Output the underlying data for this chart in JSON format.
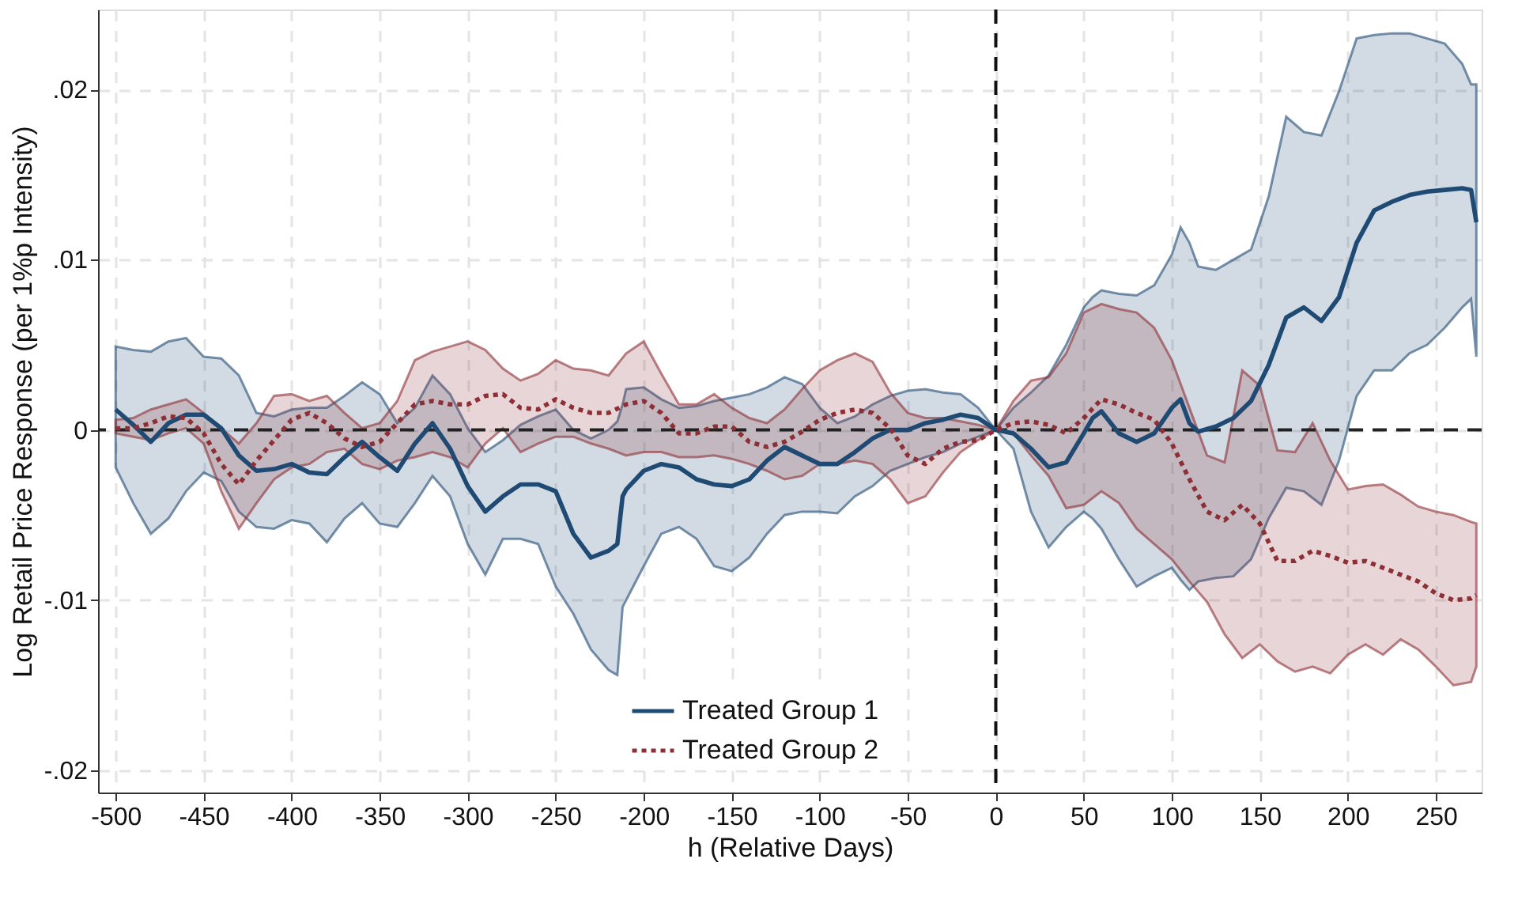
{
  "chart_data": {
    "type": "line",
    "xlabel": "h (Relative Days)",
    "ylabel": "Log Retail Price Response (per 1%p Intensity)",
    "xlim": [
      -510,
      276
    ],
    "xticks": [
      -500,
      -450,
      -400,
      -350,
      -300,
      -250,
      -200,
      -150,
      -100,
      -50,
      0,
      50,
      100,
      150,
      200,
      250
    ],
    "ylim": [
      -0.0213,
      0.0247
    ],
    "yticks": [
      {
        "value": -0.02,
        "label": "-.02"
      },
      {
        "value": -0.01,
        "label": "-.01"
      },
      0,
      {
        "value": 0.01,
        "label": ".01"
      },
      {
        "value": 0.02,
        "label": ".02"
      }
    ],
    "grid": true,
    "legend": "bottom",
    "ref_lines": [
      {
        "axis": "y",
        "value": 0,
        "color": "#222222",
        "line_style": "dashed"
      },
      {
        "axis": "x",
        "value": 0,
        "color": "#111111",
        "line_style": "dashed"
      }
    ],
    "series": [
      {
        "name": "Treated Group 1",
        "color": "#1f4a73",
        "line_style": "solid",
        "x": [
          -500,
          -490,
          -480,
          -470,
          -460,
          -450,
          -440,
          -430,
          -420,
          -410,
          -400,
          -390,
          -380,
          -370,
          -360,
          -350,
          -340,
          -330,
          -320,
          -310,
          -300,
          -290,
          -280,
          -270,
          -260,
          -250,
          -240,
          -230,
          -220,
          -215,
          -212,
          -210,
          -200,
          -190,
          -180,
          -170,
          -160,
          -150,
          -140,
          -130,
          -120,
          -110,
          -100,
          -90,
          -80,
          -70,
          -60,
          -50,
          -40,
          -30,
          -20,
          -10,
          0,
          10,
          20,
          30,
          40,
          50,
          55,
          60,
          70,
          80,
          90,
          100,
          105,
          110,
          115,
          125,
          135,
          145,
          155,
          165,
          175,
          185,
          195,
          205,
          215,
          225,
          235,
          245,
          255,
          265,
          270,
          273
        ],
        "values": [
          0.0012,
          0.0003,
          -0.0007,
          0.0004,
          0.0009,
          0.0009,
          0.0001,
          -0.0015,
          -0.0024,
          -0.0023,
          -0.002,
          -0.0025,
          -0.0026,
          -0.0016,
          -0.0007,
          -0.0016,
          -0.0024,
          -0.0008,
          0.0004,
          -0.0011,
          -0.0033,
          -0.0048,
          -0.0039,
          -0.0032,
          -0.0032,
          -0.0036,
          -0.0061,
          -0.0075,
          -0.0071,
          -0.0067,
          -0.0039,
          -0.0035,
          -0.0024,
          -0.002,
          -0.0022,
          -0.0029,
          -0.0032,
          -0.0033,
          -0.0029,
          -0.0018,
          -0.001,
          -0.0015,
          -0.002,
          -0.002,
          -0.0013,
          -0.0005,
          0,
          0,
          0.0004,
          0.0006,
          0.0009,
          0.0007,
          0,
          -0.0002,
          -0.0011,
          -0.0022,
          -0.0019,
          -0.0002,
          0.0007,
          0.0011,
          -0.0002,
          -0.0007,
          -0.0002,
          0.0013,
          0.0018,
          0.0004,
          -0.0001,
          0.0002,
          0.0007,
          0.0017,
          0.0038,
          0.0066,
          0.0072,
          0.0064,
          0.0078,
          0.011,
          0.0129,
          0.0134,
          0.0138,
          0.014,
          0.0141,
          0.0142,
          0.0141,
          0.0122
        ],
        "upper": [
          0.0049,
          0.0047,
          0.0046,
          0.0052,
          0.0054,
          0.0043,
          0.0042,
          0.0032,
          0.001,
          0.0008,
          0.0012,
          0.0013,
          0.0013,
          0.002,
          0.0028,
          0.0021,
          0.0004,
          0.0013,
          0.0032,
          0.0021,
          0.0001,
          -0.0013,
          -0.0006,
          0.0003,
          0.0008,
          0.0012,
          0,
          -0.0005,
          0,
          0.0005,
          0.0015,
          0.0024,
          0.0025,
          0.0018,
          0.0013,
          0.0014,
          0.0017,
          0.0019,
          0.0021,
          0.0025,
          0.0031,
          0.0027,
          0.0013,
          0.0004,
          0.0008,
          0.0015,
          0.002,
          0.0023,
          0.0024,
          0.0022,
          0.0021,
          0.0013,
          0,
          0.0013,
          0.0022,
          0.0032,
          0.005,
          0.0072,
          0.0078,
          0.0082,
          0.008,
          0.0079,
          0.0085,
          0.0103,
          0.0119,
          0.011,
          0.0096,
          0.0094,
          0.01,
          0.0106,
          0.0137,
          0.0184,
          0.0175,
          0.0173,
          0.0199,
          0.023,
          0.0232,
          0.0233,
          0.0233,
          0.023,
          0.0227,
          0.0215,
          0.0203,
          0.0203
        ],
        "lower": [
          -0.0022,
          -0.0043,
          -0.0061,
          -0.0052,
          -0.0036,
          -0.0025,
          -0.003,
          -0.0048,
          -0.0057,
          -0.0058,
          -0.0053,
          -0.0055,
          -0.0066,
          -0.0052,
          -0.0043,
          -0.0055,
          -0.0057,
          -0.0043,
          -0.0027,
          -0.0039,
          -0.0067,
          -0.0085,
          -0.0064,
          -0.0064,
          -0.0067,
          -0.0092,
          -0.0108,
          -0.0129,
          -0.0141,
          -0.0144,
          -0.0104,
          -0.01,
          -0.008,
          -0.0061,
          -0.0057,
          -0.0064,
          -0.008,
          -0.0083,
          -0.0075,
          -0.0061,
          -0.005,
          -0.0048,
          -0.0048,
          -0.0049,
          -0.0039,
          -0.0033,
          -0.0024,
          -0.002,
          -0.0016,
          -0.0013,
          -0.0008,
          -0.0004,
          0,
          -0.0011,
          -0.0048,
          -0.0069,
          -0.0057,
          -0.0048,
          -0.0052,
          -0.0058,
          -0.0076,
          -0.0092,
          -0.0086,
          -0.0081,
          -0.0088,
          -0.0094,
          -0.0089,
          -0.0087,
          -0.0086,
          -0.0076,
          -0.0052,
          -0.0034,
          -0.0036,
          -0.0044,
          -0.0018,
          0.002,
          0.0035,
          0.0035,
          0.0045,
          0.005,
          0.006,
          0.0072,
          0.0077,
          0.0043
        ]
      },
      {
        "name": "Treated Group 2",
        "color": "#8e2f36",
        "line_style": "dotted",
        "x": [
          -500,
          -490,
          -480,
          -470,
          -460,
          -450,
          -440,
          -430,
          -420,
          -410,
          -400,
          -390,
          -380,
          -370,
          -360,
          -350,
          -340,
          -330,
          -320,
          -310,
          -300,
          -290,
          -280,
          -270,
          -260,
          -250,
          -240,
          -230,
          -220,
          -210,
          -200,
          -190,
          -180,
          -170,
          -160,
          -150,
          -140,
          -130,
          -120,
          -110,
          -100,
          -90,
          -80,
          -70,
          -60,
          -50,
          -40,
          -30,
          -20,
          -10,
          0,
          10,
          20,
          30,
          40,
          50,
          60,
          70,
          80,
          90,
          100,
          110,
          120,
          130,
          140,
          150,
          160,
          170,
          180,
          190,
          200,
          210,
          220,
          230,
          240,
          250,
          260,
          270,
          273
        ],
        "values": [
          0.0001,
          0.0001,
          0.0004,
          0.0008,
          0.0007,
          -0.0002,
          -0.002,
          -0.0032,
          -0.0018,
          -0.0006,
          0.0006,
          0.001,
          0.0004,
          -0.0005,
          -0.001,
          -0.0007,
          0.0004,
          0.0015,
          0.0017,
          0.0015,
          0.0015,
          0.002,
          0.0021,
          0.0013,
          0.0012,
          0.0018,
          0.0013,
          0.001,
          0.001,
          0.0015,
          0.0017,
          0.001,
          -0.0002,
          -0.0002,
          0.0002,
          0.0002,
          -0.0007,
          -0.001,
          -0.0007,
          -0.0001,
          0.0006,
          0.001,
          0.0012,
          0.001,
          0.0001,
          -0.0015,
          -0.002,
          -0.0011,
          -0.0007,
          -0.0006,
          0,
          0.0004,
          0.0005,
          0.0003,
          -0.0002,
          0.0007,
          0.0018,
          0.0015,
          0.001,
          0.0006,
          -0.0008,
          -0.0029,
          -0.0048,
          -0.0053,
          -0.0044,
          -0.0055,
          -0.0077,
          -0.0077,
          -0.0071,
          -0.0074,
          -0.0078,
          -0.0077,
          -0.0081,
          -0.0085,
          -0.0089,
          -0.0096,
          -0.01,
          -0.0099,
          -0.0097
        ],
        "upper": [
          0.0006,
          0.0007,
          0.0012,
          0.0015,
          0.0018,
          0.001,
          0.0001,
          -0.0008,
          0.0004,
          0.002,
          0.0021,
          0.0017,
          0.002,
          0.001,
          0.0001,
          0.0004,
          0.0017,
          0.0041,
          0.0046,
          0.0049,
          0.0052,
          0.0047,
          0.0036,
          0.0029,
          0.0033,
          0.0041,
          0.0036,
          0.0035,
          0.0032,
          0.0045,
          0.0052,
          0.0033,
          0.0015,
          0.0015,
          0.0021,
          0.0013,
          0.0007,
          0.0004,
          0.0012,
          0.0024,
          0.0035,
          0.0041,
          0.0045,
          0.004,
          0.0022,
          0.001,
          0.0007,
          0.0007,
          0.0005,
          0.0003,
          0,
          0.0017,
          0.0029,
          0.0031,
          0.0045,
          0.0069,
          0.0074,
          0.0071,
          0.0069,
          0.006,
          0.0041,
          0.0013,
          -0.0015,
          -0.0019,
          0.0035,
          0.0026,
          -0.0012,
          -0.0013,
          0.0004,
          -0.0018,
          -0.0035,
          -0.0033,
          -0.0032,
          -0.0038,
          -0.0045,
          -0.0048,
          -0.005,
          -0.0054,
          -0.0055
        ],
        "lower": [
          -0.0002,
          -0.0004,
          -0.0006,
          -0.0002,
          0.0001,
          -0.0008,
          -0.0036,
          -0.0058,
          -0.0043,
          -0.0029,
          -0.0022,
          -0.002,
          -0.0013,
          -0.0011,
          -0.002,
          -0.0023,
          -0.0018,
          -0.0016,
          -0.0013,
          -0.0016,
          -0.0022,
          -0.0008,
          0.0001,
          -0.0013,
          -0.0008,
          -0.0004,
          -0.0004,
          -0.0008,
          -0.0011,
          -0.0015,
          -0.0013,
          -0.0013,
          -0.0016,
          -0.0016,
          -0.0015,
          -0.0017,
          -0.002,
          -0.0024,
          -0.0029,
          -0.0027,
          -0.002,
          -0.002,
          -0.0018,
          -0.002,
          -0.0029,
          -0.0043,
          -0.0039,
          -0.0025,
          -0.0013,
          -0.0006,
          0,
          -0.0002,
          -0.0015,
          -0.0027,
          -0.0046,
          -0.0044,
          -0.0036,
          -0.0043,
          -0.0058,
          -0.0067,
          -0.0076,
          -0.0089,
          -0.0101,
          -0.012,
          -0.0134,
          -0.0126,
          -0.0136,
          -0.0142,
          -0.0139,
          -0.0143,
          -0.0132,
          -0.0126,
          -0.0132,
          -0.0123,
          -0.0129,
          -0.0139,
          -0.015,
          -0.0148,
          -0.0139
        ]
      }
    ]
  }
}
